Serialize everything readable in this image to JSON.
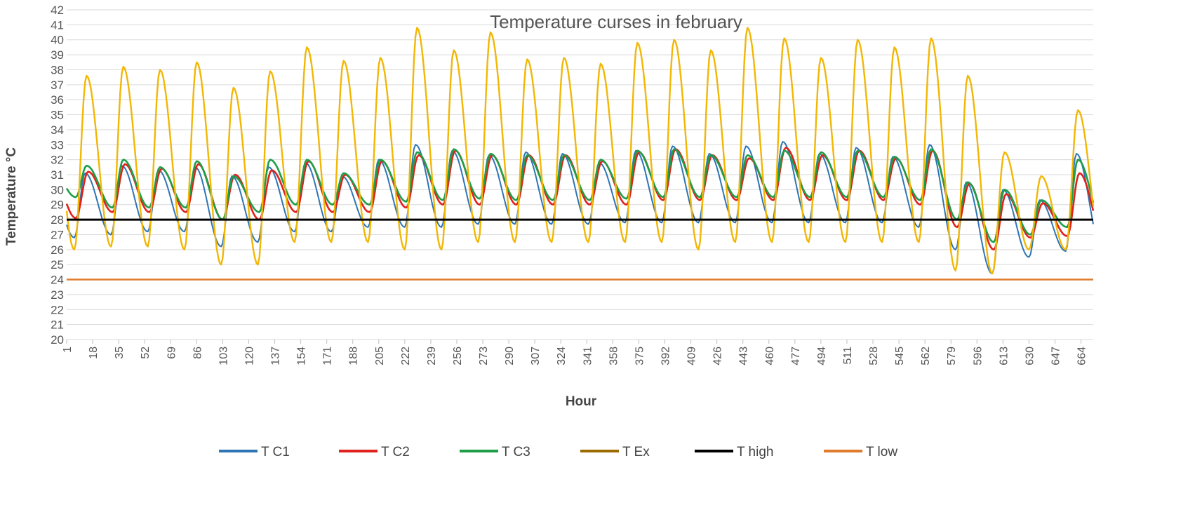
{
  "chart_data": {
    "type": "line",
    "title": "Temperature curses in february",
    "xlabel": "Hour",
    "ylabel": "Temperature °C",
    "ylim": [
      20,
      42
    ],
    "xlim": [
      1,
      672
    ],
    "y_ticks": [
      20,
      21,
      22,
      23,
      24,
      25,
      26,
      27,
      28,
      29,
      30,
      31,
      32,
      33,
      34,
      35,
      36,
      37,
      38,
      39,
      40,
      41,
      42
    ],
    "x_ticks": [
      1,
      18,
      35,
      52,
      69,
      86,
      103,
      120,
      137,
      154,
      171,
      188,
      205,
      222,
      239,
      256,
      273,
      290,
      307,
      324,
      341,
      358,
      375,
      392,
      409,
      426,
      443,
      460,
      477,
      494,
      511,
      528,
      545,
      562,
      579,
      596,
      613,
      630,
      647,
      664
    ],
    "grid": true,
    "legend_position": "bottom",
    "series": [
      {
        "name": "T C1",
        "color": "#2e75b6"
      },
      {
        "name": "T C2",
        "color": "#e0211c"
      },
      {
        "name": "T C3",
        "color": "#1e9e48"
      },
      {
        "name": "T Ex",
        "color": "#f2b705",
        "legend_color": "#9c6b00"
      },
      {
        "name": "T high",
        "color": "#000000",
        "constant": 28
      },
      {
        "name": "T low",
        "color": "#e07b2c",
        "constant": 24
      }
    ],
    "daily_cycles": {
      "hours_per_day": 24,
      "T_Ex": {
        "max": [
          37.6,
          38.2,
          38.0,
          38.5,
          36.8,
          37.9,
          39.5,
          38.6,
          38.8,
          40.8,
          39.3,
          40.5,
          38.7,
          38.8,
          38.4,
          39.8,
          40.0,
          39.3,
          40.8,
          40.1,
          38.8,
          40.0,
          39.5,
          40.1,
          37.6,
          32.5,
          30.9,
          35.3
        ],
        "min": [
          26.0,
          26.2,
          26.2,
          26.0,
          25.0,
          25.0,
          26.5,
          26.5,
          26.5,
          26.0,
          26.0,
          26.5,
          26.5,
          26.5,
          26.5,
          26.5,
          26.5,
          26.0,
          26.5,
          26.5,
          26.5,
          26.5,
          26.5,
          26.5,
          24.6,
          24.4,
          26.0,
          26.0
        ]
      },
      "T_C1": {
        "max": [
          31.1,
          31.6,
          31.3,
          31.5,
          30.9,
          31.5,
          31.8,
          30.9,
          32.0,
          33.0,
          32.6,
          32.3,
          32.5,
          32.4,
          31.8,
          32.6,
          32.9,
          32.4,
          32.9,
          33.2,
          32.4,
          32.8,
          32.2,
          33.0,
          30.5,
          30.0,
          29.3,
          32.4
        ],
        "min": [
          26.8,
          27.0,
          27.2,
          27.2,
          26.2,
          26.5,
          27.2,
          27.2,
          27.5,
          27.5,
          27.5,
          27.7,
          27.7,
          27.7,
          27.7,
          27.8,
          27.8,
          27.8,
          27.8,
          27.8,
          27.8,
          27.8,
          27.8,
          27.5,
          26.0,
          24.4,
          25.5,
          25.9
        ]
      },
      "T_C2": {
        "max": [
          31.2,
          31.7,
          31.4,
          31.7,
          31.0,
          31.3,
          31.9,
          31.0,
          31.9,
          32.3,
          32.6,
          32.3,
          32.3,
          32.3,
          31.9,
          32.5,
          32.7,
          32.3,
          32.1,
          32.8,
          32.3,
          32.6,
          32.1,
          32.6,
          30.4,
          29.7,
          29.1,
          31.1
        ],
        "min": [
          28.1,
          28.5,
          28.5,
          28.5,
          28.0,
          28.0,
          28.5,
          28.5,
          28.5,
          28.8,
          29.0,
          29.0,
          29.0,
          29.0,
          29.0,
          29.0,
          29.3,
          29.3,
          29.3,
          29.3,
          29.3,
          29.3,
          29.3,
          29.0,
          27.5,
          26.0,
          26.8,
          26.9
        ]
      },
      "T_C3": {
        "max": [
          31.6,
          32.0,
          31.5,
          31.9,
          30.9,
          32.0,
          32.0,
          31.1,
          32.0,
          32.5,
          32.7,
          32.4,
          32.3,
          32.3,
          32.0,
          32.6,
          32.7,
          32.3,
          32.3,
          32.6,
          32.5,
          32.6,
          32.2,
          32.7,
          30.5,
          30.0,
          29.3,
          32.0
        ],
        "min": [
          29.5,
          28.8,
          28.8,
          28.8,
          28.0,
          28.5,
          29.0,
          29.0,
          29.0,
          29.2,
          29.3,
          29.4,
          29.3,
          29.3,
          29.3,
          29.4,
          29.5,
          29.5,
          29.5,
          29.5,
          29.5,
          29.5,
          29.5,
          29.3,
          28.0,
          26.5,
          27.0,
          27.5
        ]
      }
    }
  }
}
